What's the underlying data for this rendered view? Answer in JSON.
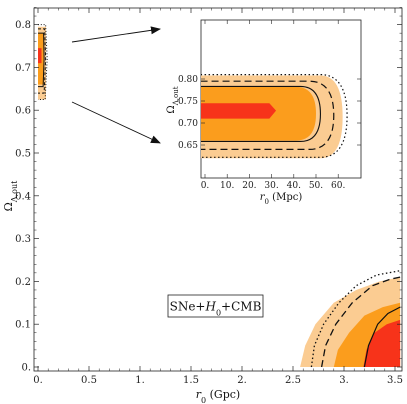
{
  "chart_data": [
    {
      "type": "contour",
      "xlabel": "r_0 (Gpc)",
      "ylabel": "Ω_Λ,out",
      "xlim": [
        0.0,
        3.5
      ],
      "ylim": [
        0.0,
        0.85
      ],
      "xticks": [
        "0.",
        "0.5",
        "1.",
        "1.5",
        "2.",
        "2.5",
        "3.",
        "3.5"
      ],
      "yticks": [
        "0.",
        "0.1",
        "0.2",
        "0.3",
        "0.4",
        "0.5",
        "0.6",
        "0.7",
        "0.8"
      ],
      "annotation": "SNe+H0+CMB",
      "colors": {
        "outer": "#fbcc92",
        "middle": "#fb9d1d",
        "inner": "#f7331a"
      },
      "lines": [
        "solid",
        "dashed",
        "dotted"
      ]
    },
    {
      "type": "contour",
      "role": "inset",
      "xlabel": "r_0 (Mpc)",
      "ylabel": "Ω_Λ,out",
      "xlim": [
        0,
        65
      ],
      "ylim": [
        0.62,
        0.81
      ],
      "xticks": [
        "0.",
        "10.",
        "20.",
        "30.",
        "40.",
        "50.",
        "60."
      ],
      "yticks": [
        "0.65",
        "0.70",
        "0.75",
        "0.80"
      ]
    }
  ]
}
